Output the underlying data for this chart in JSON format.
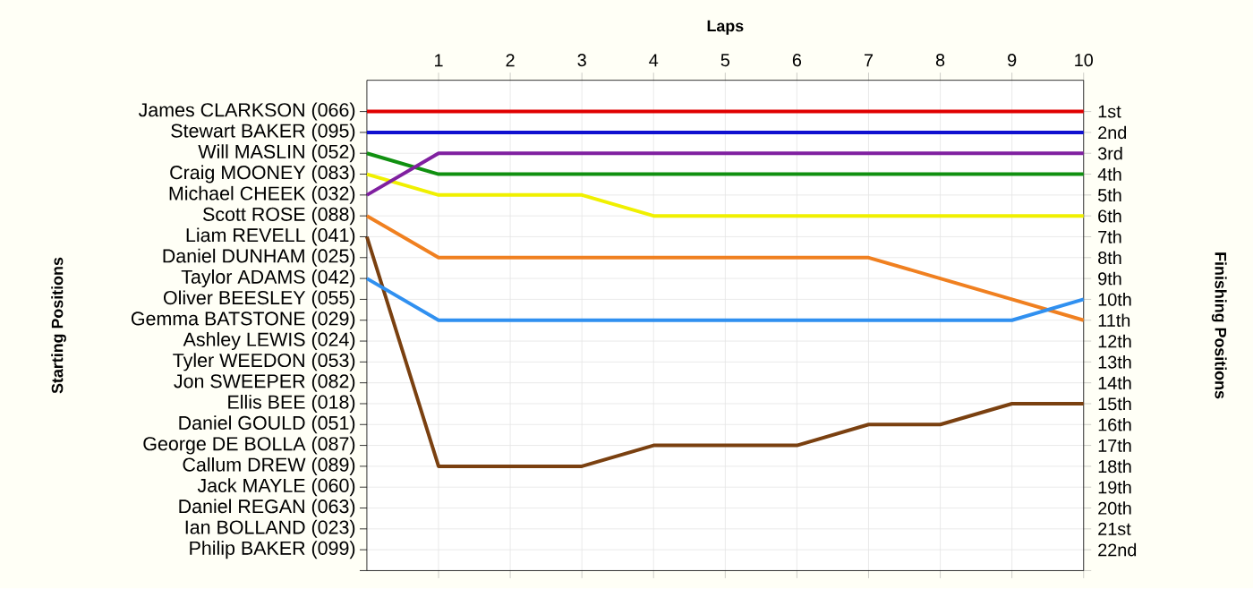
{
  "chart_data": {
    "type": "line",
    "xlabel": "Laps",
    "y2label": "Finishing Positions",
    "x": [
      0,
      1,
      2,
      3,
      4,
      5,
      6,
      7,
      8,
      9,
      10
    ],
    "xlim": [
      0,
      10
    ],
    "xticks": [
      1,
      2,
      3,
      4,
      5,
      6,
      7,
      8,
      9,
      10
    ],
    "y2lim": [
      23,
      -0.5
    ],
    "y2ticks": [
      {
        "value": 1,
        "label": "1st"
      },
      {
        "value": 2,
        "label": "2nd"
      },
      {
        "value": 3,
        "label": "3rd"
      },
      {
        "value": 4,
        "label": "4th"
      },
      {
        "value": 5,
        "label": "5th"
      },
      {
        "value": 6,
        "label": "6th"
      },
      {
        "value": 7,
        "label": "7th"
      },
      {
        "value": 8,
        "label": "8th"
      },
      {
        "value": 9,
        "label": "9th"
      },
      {
        "value": 10,
        "label": "10th"
      },
      {
        "value": 11,
        "label": "11th"
      },
      {
        "value": 12,
        "label": "12th"
      },
      {
        "value": 13,
        "label": "13th"
      },
      {
        "value": 14,
        "label": "14th"
      },
      {
        "value": 15,
        "label": "15th"
      },
      {
        "value": 16,
        "label": "16th"
      },
      {
        "value": 17,
        "label": "17th"
      },
      {
        "value": 18,
        "label": "18th"
      },
      {
        "value": 19,
        "label": "19th"
      },
      {
        "value": 20,
        "label": "20th"
      },
      {
        "value": 21,
        "label": "21st"
      },
      {
        "value": 22,
        "label": "22nd"
      },
      {
        "value": 23,
        "label": null
      }
    ],
    "grid": true,
    "annotations": [
      "James CLARKSON (066)",
      "Stewart BAKER (095)",
      "Will MASLIN (052)",
      "Craig MOONEY (083)",
      "Michael CHEEK (032)",
      "Scott ROSE (088)",
      "Liam REVELL (041)",
      "Daniel DUNHAM (025)",
      "Taylor ADAMS (042)",
      "Oliver BEESLEY (055)",
      "Gemma BATSTONE (029)",
      "Ashley LEWIS (024)",
      "Tyler WEEDON (053)",
      "Jon SWEEPER (082)",
      "Ellis BEE (018)",
      "Daniel GOULD (051)",
      "George DE BOLLA (087)",
      "Callum DREW (089)",
      "Jack MAYLE (060)",
      "Daniel REGAN (063)",
      "Ian BOLLAND (023)",
      "Philip BAKER (099)",
      "Starting Positions"
    ],
    "series": [
      {
        "color": "#e00000",
        "axis": "y2",
        "values": [
          1,
          1,
          1,
          1,
          1,
          1,
          1,
          1,
          1,
          1,
          1
        ]
      },
      {
        "color": "#1010d0",
        "axis": "y2",
        "values": [
          2,
          2,
          2,
          2,
          2,
          2,
          2,
          2,
          2,
          2,
          2
        ]
      },
      {
        "color": "#109010",
        "axis": "y2",
        "values": [
          3,
          4,
          4,
          4,
          4,
          4,
          4,
          4,
          4,
          4,
          4
        ]
      },
      {
        "color": "#f0f000",
        "axis": "y2",
        "values": [
          4,
          5,
          5,
          5,
          6,
          6,
          6,
          6,
          6,
          6,
          6
        ]
      },
      {
        "color": "#8020a0",
        "axis": "y2",
        "values": [
          5,
          3,
          3,
          3,
          3,
          3,
          3,
          3,
          3,
          3,
          3
        ]
      },
      {
        "color": "#f08020",
        "axis": "y2",
        "values": [
          6,
          8,
          8,
          8,
          8,
          8,
          8,
          8,
          9,
          10,
          11
        ]
      },
      {
        "color": "#7a4010",
        "axis": "y2",
        "values": [
          7,
          18,
          18,
          18,
          17,
          17,
          17,
          16,
          16,
          15,
          15
        ]
      },
      {
        "color": "#3090f0",
        "axis": "y2",
        "values": [
          9,
          11,
          11,
          11,
          11,
          11,
          11,
          11,
          11,
          11,
          10
        ]
      }
    ]
  }
}
